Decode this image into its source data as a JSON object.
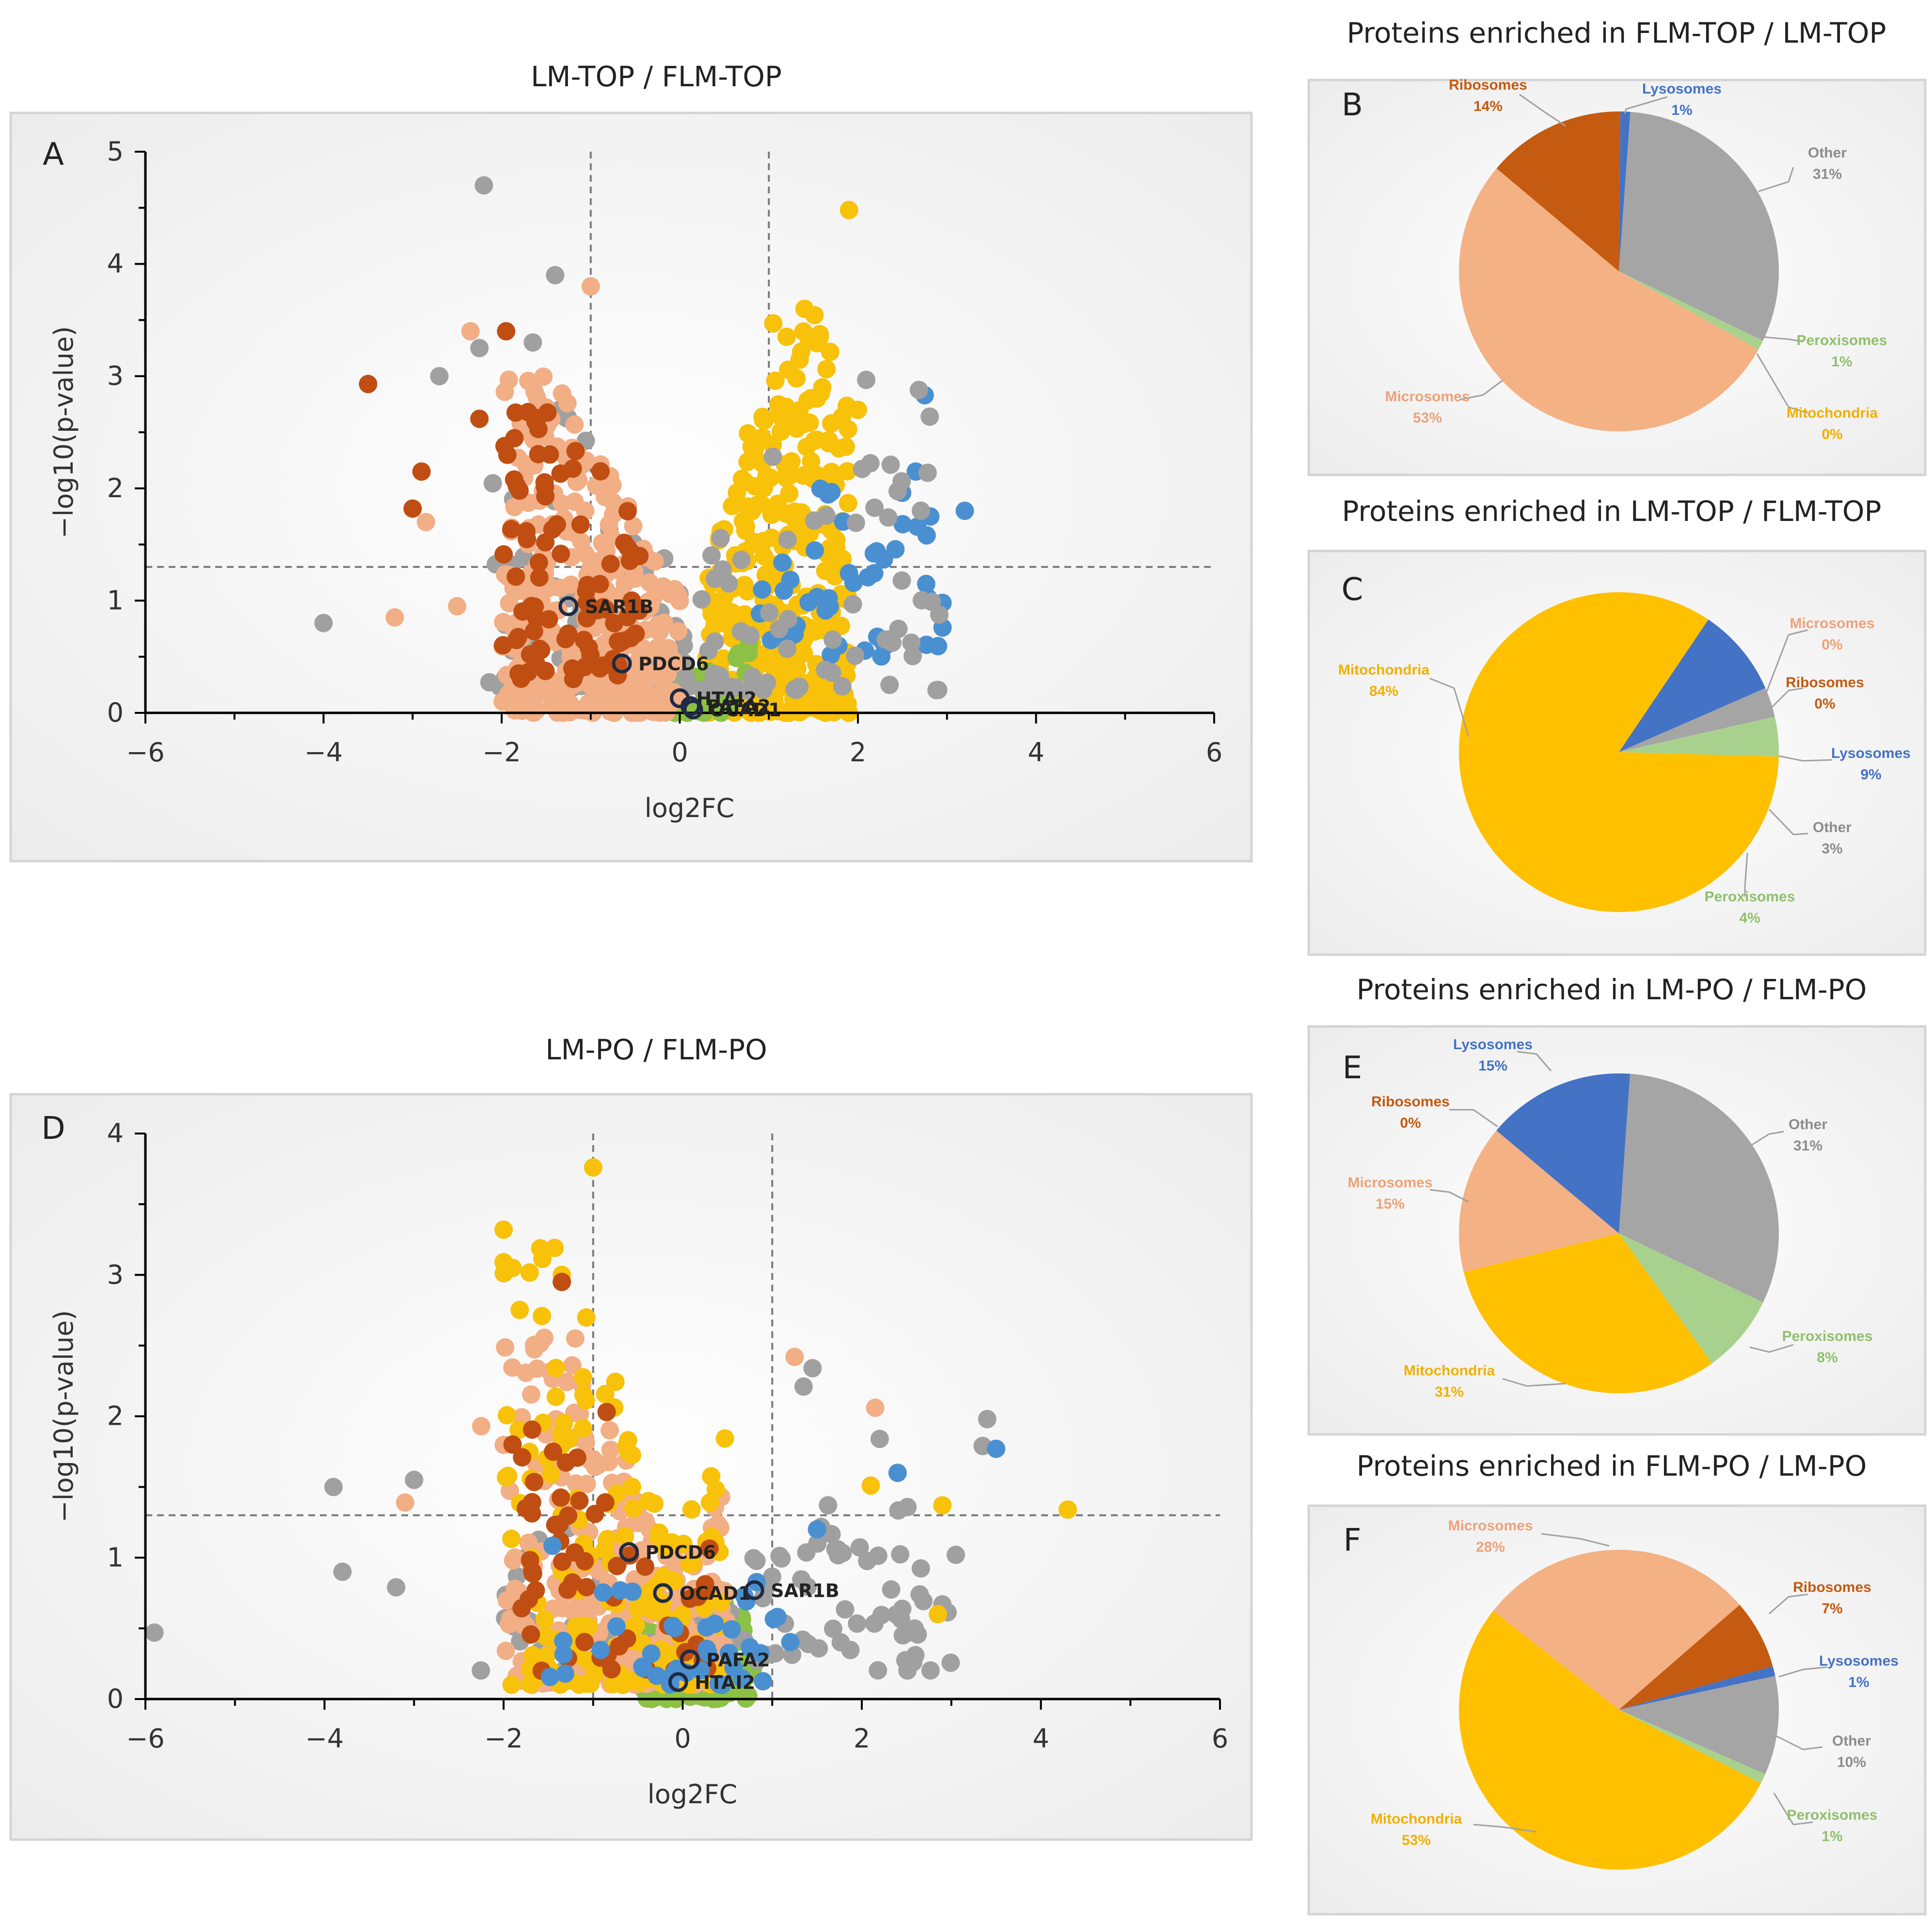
{
  "colors": {
    "microsomes": "#F4B183",
    "ribosomes": "#C55A11",
    "lysosomes": "#4472C4",
    "other": "#A5A5A5",
    "peroxisomes": "#A9D18E",
    "mitochondria": "#FFC000",
    "scatter_mito": "#F8C10A",
    "scatter_lyso": "#4A90D0",
    "scatter_perox": "#8CC145",
    "scatter_other": "#A0A0A0",
    "scatter_micro": "#F2AE85",
    "scatter_ribo": "#C04E12"
  },
  "chart_data": [
    {
      "id": "A",
      "type": "scatter",
      "subtype": "volcano",
      "title": "LM-TOP / FLM-TOP",
      "xlabel": "log2FC",
      "ylabel": "−log10(p-value)",
      "xlim": [
        -6,
        6
      ],
      "ylim": [
        0,
        5
      ],
      "xticks": [
        -6,
        -4,
        -2,
        0,
        2,
        4,
        6
      ],
      "xtick_labels": [
        "−6",
        "−4",
        "−2",
        "0",
        "2",
        "4",
        "6"
      ],
      "yticks": [
        0,
        1,
        2,
        3,
        4,
        5
      ],
      "ytick_labels": [
        "0",
        "1",
        "2",
        "3",
        "4",
        "5"
      ],
      "thresholds": {
        "x": [
          -1,
          1
        ],
        "y": 1.3
      },
      "highlighted": [
        {
          "label": "SAR1B",
          "x": -1.25,
          "y": 0.95
        },
        {
          "label": "PDCD6",
          "x": -0.65,
          "y": 0.44
        },
        {
          "label": "HTAI2",
          "x": 0.0,
          "y": 0.13
        },
        {
          "label": "PAFA2",
          "x": 0.12,
          "y": 0.06
        },
        {
          "label": "OCAD1",
          "x": 0.15,
          "y": 0.03
        }
      ],
      "series": [
        {
          "name": "Mitochondria",
          "color_key": "scatter_mito",
          "cluster_x": [
            0.3,
            1.9
          ],
          "cluster_y": [
            0.0,
            3.6
          ],
          "count": 330,
          "outliers": [
            [
              1.9,
              4.48
            ],
            [
              1.4,
              3.6
            ],
            [
              1.05,
              3.47
            ],
            [
              1.2,
              3.35
            ],
            [
              2.0,
              2.7
            ],
            [
              1.6,
              2.9
            ]
          ]
        },
        {
          "name": "Lysosomes",
          "color_key": "scatter_lyso",
          "cluster_x": [
            0.9,
            3.0
          ],
          "cluster_y": [
            0.5,
            2.0
          ],
          "count": 45,
          "outliers": [
            [
              2.75,
              2.83
            ],
            [
              3.2,
              1.8
            ],
            [
              2.65,
              2.15
            ],
            [
              2.95,
              0.98
            ],
            [
              2.95,
              0.76
            ],
            [
              0.0,
              0.13
            ],
            [
              0.12,
              0.06
            ]
          ]
        },
        {
          "name": "Peroxisomes",
          "color_key": "scatter_perox",
          "cluster_x": [
            -0.5,
            0.8
          ],
          "cluster_y": [
            0.0,
            0.9
          ],
          "count": 45,
          "outliers": []
        },
        {
          "name": "Other",
          "color_key": "scatter_other",
          "cluster_x": [
            -2.2,
            3.0
          ],
          "cluster_y": [
            0.2,
            3.0
          ],
          "count": 130,
          "outliers": [
            [
              -2.2,
              4.7
            ],
            [
              -1.4,
              3.9
            ],
            [
              -2.25,
              3.25
            ],
            [
              -1.65,
              3.3
            ],
            [
              -2.7,
              3.0
            ],
            [
              -4.0,
              0.8
            ]
          ]
        },
        {
          "name": "Microsomes",
          "color_key": "scatter_micro",
          "cluster_x": [
            -2.0,
            0.0
          ],
          "cluster_y": [
            0.0,
            3.0
          ],
          "count": 330,
          "outliers": [
            [
              -1.0,
              3.8
            ],
            [
              -2.35,
              3.4
            ],
            [
              -3.2,
              0.85
            ],
            [
              -2.85,
              1.7
            ],
            [
              -2.5,
              0.95
            ]
          ]
        },
        {
          "name": "Ribosomes",
          "color_key": "scatter_ribo",
          "cluster_x": [
            -2.0,
            -0.4
          ],
          "cluster_y": [
            0.3,
            2.8
          ],
          "count": 90,
          "outliers": [
            [
              -3.5,
              2.93
            ],
            [
              -1.95,
              3.4
            ],
            [
              -2.9,
              2.15
            ],
            [
              -3.0,
              1.82
            ],
            [
              -2.25,
              2.62
            ]
          ]
        }
      ]
    },
    {
      "id": "D",
      "type": "scatter",
      "subtype": "volcano",
      "title": "LM-PO / FLM-PO",
      "xlabel": "log2FC",
      "ylabel": "−log10(p-value)",
      "xlim": [
        -6,
        6
      ],
      "ylim": [
        0,
        4
      ],
      "xticks": [
        -6,
        -4,
        -2,
        0,
        2,
        4,
        6
      ],
      "xtick_labels": [
        "−6",
        "−4",
        "−2",
        "0",
        "2",
        "4",
        "6"
      ],
      "yticks": [
        0,
        1,
        2,
        3,
        4
      ],
      "ytick_labels": [
        "0",
        "1",
        "2",
        "3",
        "4"
      ],
      "thresholds": {
        "x": [
          -1,
          1
        ],
        "y": 1.3
      },
      "highlighted": [
        {
          "label": "PDCD6",
          "x": -0.6,
          "y": 1.04
        },
        {
          "label": "OCAD1",
          "x": -0.22,
          "y": 0.75
        },
        {
          "label": "SAR1B",
          "x": 0.8,
          "y": 0.77
        },
        {
          "label": "PAFA2",
          "x": 0.08,
          "y": 0.28
        },
        {
          "label": "HTAI2",
          "x": -0.05,
          "y": 0.12
        }
      ],
      "series": [
        {
          "name": "Peroxisomes",
          "color_key": "scatter_perox",
          "cluster_x": [
            -0.5,
            0.8
          ],
          "cluster_y": [
            0.0,
            1.3
          ],
          "count": 120,
          "outliers": []
        },
        {
          "name": "Other",
          "color_key": "scatter_other",
          "cluster_x": [
            -2.3,
            3.0
          ],
          "cluster_y": [
            0.2,
            1.4
          ],
          "count": 120,
          "outliers": [
            [
              -5.9,
              0.47
            ],
            [
              -3.9,
              1.5
            ],
            [
              -3.8,
              0.9
            ],
            [
              -3.2,
              0.79
            ],
            [
              -3.0,
              1.55
            ],
            [
              1.45,
              2.34
            ],
            [
              1.35,
              2.21
            ],
            [
              3.4,
              1.98
            ],
            [
              3.35,
              1.79
            ],
            [
              2.2,
              1.84
            ],
            [
              3.05,
              1.02
            ]
          ]
        },
        {
          "name": "Microsomes",
          "color_key": "scatter_micro",
          "cluster_x": [
            -2.0,
            0.5
          ],
          "cluster_y": [
            0.1,
            2.6
          ],
          "count": 300,
          "outliers": [
            [
              1.25,
              2.42
            ],
            [
              2.15,
              2.06
            ],
            [
              -1.2,
              2.55
            ],
            [
              -2.25,
              1.93
            ],
            [
              -3.1,
              1.39
            ]
          ]
        },
        {
          "name": "Mitochondria",
          "color_key": "scatter_mito",
          "cluster_x": [
            -2.0,
            0.5
          ],
          "cluster_y": [
            0.1,
            3.3
          ],
          "count": 160,
          "outliers": [
            [
              -1.0,
              3.76
            ],
            [
              -2.0,
              3.32
            ],
            [
              -2.0,
              3.09
            ],
            [
              -1.9,
              3.05
            ],
            [
              -1.35,
              3.0
            ],
            [
              4.3,
              1.34
            ],
            [
              2.9,
              1.37
            ],
            [
              2.1,
              1.51
            ],
            [
              2.85,
              0.6
            ]
          ]
        },
        {
          "name": "Ribosomes",
          "color_key": "scatter_ribo",
          "cluster_x": [
            -1.8,
            0.3
          ],
          "cluster_y": [
            0.2,
            2.0
          ],
          "count": 55,
          "outliers": [
            [
              -1.35,
              2.95
            ],
            [
              -0.85,
              2.03
            ],
            [
              -1.9,
              1.8
            ]
          ]
        },
        {
          "name": "Lysosomes",
          "color_key": "scatter_lyso",
          "cluster_x": [
            -1.5,
            1.5
          ],
          "cluster_y": [
            0.1,
            1.2
          ],
          "count": 40,
          "outliers": [
            [
              3.5,
              1.77
            ],
            [
              2.4,
              1.6
            ],
            [
              1.5,
              1.2
            ]
          ]
        }
      ]
    },
    {
      "id": "B",
      "type": "pie",
      "title": "Proteins enriched in FLM-TOP / LM-TOP",
      "slices": [
        {
          "label": "Lysosomes",
          "value": 1,
          "pct": "1%",
          "color_key": "lysosomes"
        },
        {
          "label": "Other",
          "value": 31,
          "pct": "31%",
          "color_key": "other"
        },
        {
          "label": "Peroxisomes",
          "value": 1,
          "pct": "1%",
          "color_key": "peroxisomes"
        },
        {
          "label": "Mitochondria",
          "value": 0,
          "pct": "0%",
          "color_key": "mitochondria"
        },
        {
          "label": "Microsomes",
          "value": 53,
          "pct": "53%",
          "color_key": "microsomes"
        },
        {
          "label": "Ribosomes",
          "value": 14,
          "pct": "14%",
          "color_key": "ribosomes"
        }
      ]
    },
    {
      "id": "C",
      "type": "pie",
      "title": "Proteins enriched in LM-TOP / FLM-TOP",
      "slices": [
        {
          "label": "Microsomes",
          "value": 0,
          "pct": "0%",
          "color_key": "microsomes"
        },
        {
          "label": "Ribosomes",
          "value": 0,
          "pct": "0%",
          "color_key": "ribosomes"
        },
        {
          "label": "Lysosomes",
          "value": 9,
          "pct": "9%",
          "color_key": "lysosomes"
        },
        {
          "label": "Other",
          "value": 3,
          "pct": "3%",
          "color_key": "other"
        },
        {
          "label": "Peroxisomes",
          "value": 4,
          "pct": "4%",
          "color_key": "peroxisomes"
        },
        {
          "label": "Mitochondria",
          "value": 84,
          "pct": "84%",
          "color_key": "mitochondria"
        }
      ]
    },
    {
      "id": "E",
      "type": "pie",
      "title": "Proteins enriched in LM-PO / FLM-PO",
      "slices": [
        {
          "label": "Other",
          "value": 31,
          "pct": "31%",
          "color_key": "other"
        },
        {
          "label": "Peroxisomes",
          "value": 8,
          "pct": "8%",
          "color_key": "peroxisomes"
        },
        {
          "label": "Mitochondria",
          "value": 31,
          "pct": "31%",
          "color_key": "mitochondria"
        },
        {
          "label": "Microsomes",
          "value": 15,
          "pct": "15%",
          "color_key": "microsomes"
        },
        {
          "label": "Ribosomes",
          "value": 0,
          "pct": "0%",
          "color_key": "ribosomes"
        },
        {
          "label": "Lysosomes",
          "value": 15,
          "pct": "15%",
          "color_key": "lysosomes"
        }
      ]
    },
    {
      "id": "F",
      "type": "pie",
      "title": "Proteins enriched in FLM-PO / LM-PO",
      "slices": [
        {
          "label": "Ribosomes",
          "value": 7,
          "pct": "7%",
          "color_key": "ribosomes"
        },
        {
          "label": "Lysosomes",
          "value": 1,
          "pct": "1%",
          "color_key": "lysosomes"
        },
        {
          "label": "Other",
          "value": 10,
          "pct": "10%",
          "color_key": "other"
        },
        {
          "label": "Peroxisomes",
          "value": 1,
          "pct": "1%",
          "color_key": "peroxisomes"
        },
        {
          "label": "Mitochondria",
          "value": 53,
          "pct": "53%",
          "color_key": "mitochondria"
        },
        {
          "label": "Microsomes",
          "value": 28,
          "pct": "28%",
          "color_key": "microsomes"
        }
      ]
    }
  ]
}
